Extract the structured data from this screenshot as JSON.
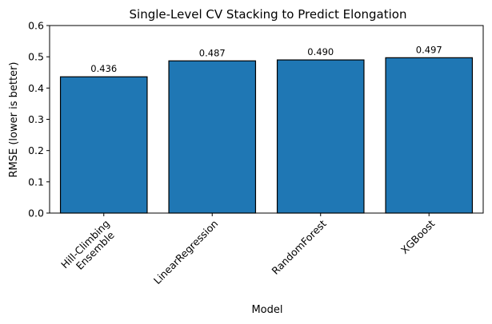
{
  "chart_data": {
    "type": "bar",
    "title": "Single-Level CV Stacking to Predict Elongation",
    "xlabel": "Model",
    "ylabel": "RMSE (lower is better)",
    "categories": [
      "Hill-Climbing\nEnsemble",
      "LinearRegression",
      "RandomForest",
      "XGBoost"
    ],
    "values": [
      0.436,
      0.487,
      0.49,
      0.497
    ],
    "value_labels": [
      "0.436",
      "0.487",
      "0.490",
      "0.497"
    ],
    "ylim": [
      0,
      0.6
    ],
    "yticks": [
      0.0,
      0.1,
      0.2,
      0.3,
      0.4,
      0.5,
      0.6
    ],
    "ytick_labels": [
      "0.0",
      "0.1",
      "0.2",
      "0.3",
      "0.4",
      "0.5",
      "0.6"
    ],
    "bar_color": "#1f77b4",
    "edge_color": "#000000",
    "grid": false,
    "legend": "none"
  }
}
